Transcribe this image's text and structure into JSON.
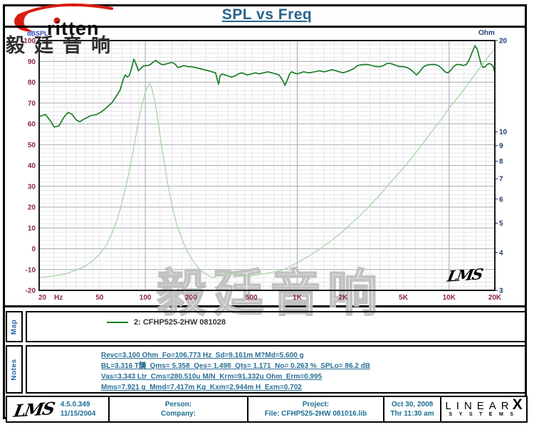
{
  "header": {
    "title": "SPL vs Freq",
    "brand_text": "ritten",
    "watermark_topleft": "毅廷音响",
    "watermark_center": "毅廷音响"
  },
  "colors": {
    "accent_red": "#d81e12",
    "title_blue": "#28648c",
    "tick_maroon": "#8a2550",
    "tick_navy": "#1c3f77",
    "dbspl_label_blue": "#2f45b5",
    "grid_minor": "#d7d7e0",
    "grid_major": "#a6a6b2",
    "plot_frame": "#1a1a1a",
    "spl_green": "#1b7e28",
    "impedance_green": "#a9d6a4",
    "teal_text": "#1b6f91",
    "panel_label_blue": "#2563a8",
    "notes_text": "#2a6f96"
  },
  "chart_data": {
    "type": "line",
    "title": "SPL vs Freq",
    "grid": true,
    "lms_mark": "LMS",
    "x_axis": {
      "label": "Hz",
      "scale": "log",
      "min": 20,
      "max": 20000,
      "tick_values": [
        20,
        50,
        100,
        200,
        500,
        1000,
        2000,
        5000,
        10000,
        20000
      ],
      "tick_labels": [
        "20",
        "50",
        "100",
        "200",
        "500",
        "1K",
        "2K",
        "5K",
        "10K",
        "20K"
      ],
      "unit_label": "Hz"
    },
    "y_left": {
      "label": "dBSPL",
      "scale": "linear",
      "min": -20,
      "max": 100,
      "major_step": 10,
      "minor_step": 2
    },
    "y_right": {
      "label": "Ohm",
      "scale": "log",
      "min": 3,
      "max": 20,
      "ticks": [
        20,
        10,
        9,
        8,
        7,
        6,
        5,
        4,
        3
      ]
    },
    "series": [
      {
        "name": "2: CFHP525-2HW   081028",
        "kind": "SPL",
        "axis": "left",
        "color": "#1b7e28",
        "width": 1.7,
        "points": [
          [
            20,
            63.5
          ],
          [
            22,
            64.5
          ],
          [
            24,
            61
          ],
          [
            25,
            58.5
          ],
          [
            27,
            59
          ],
          [
            29,
            63
          ],
          [
            31,
            65.5
          ],
          [
            33,
            64.5
          ],
          [
            35,
            62
          ],
          [
            37,
            61
          ],
          [
            40,
            62.5
          ],
          [
            44,
            64
          ],
          [
            48,
            64.5
          ],
          [
            52,
            66
          ],
          [
            56,
            68
          ],
          [
            60,
            70
          ],
          [
            64,
            73
          ],
          [
            68,
            76
          ],
          [
            70,
            79
          ],
          [
            72,
            82
          ],
          [
            74,
            83.5
          ],
          [
            76,
            82.5
          ],
          [
            78,
            83
          ],
          [
            80,
            85
          ],
          [
            82,
            88
          ],
          [
            84,
            91
          ],
          [
            86,
            89.5
          ],
          [
            88,
            87.5
          ],
          [
            90,
            85.5
          ],
          [
            93,
            86.5
          ],
          [
            96,
            87.5
          ],
          [
            100,
            88
          ],
          [
            104,
            88
          ],
          [
            108,
            88.5
          ],
          [
            112,
            89.5
          ],
          [
            117,
            90.5
          ],
          [
            122,
            89.5
          ],
          [
            128,
            88.5
          ],
          [
            134,
            88.5
          ],
          [
            140,
            89
          ],
          [
            150,
            89.5
          ],
          [
            158,
            88.5
          ],
          [
            164,
            87
          ],
          [
            172,
            87.5
          ],
          [
            180,
            88
          ],
          [
            190,
            87.5
          ],
          [
            200,
            87.5
          ],
          [
            215,
            87
          ],
          [
            230,
            86.5
          ],
          [
            245,
            86
          ],
          [
            260,
            85.5
          ],
          [
            275,
            85
          ],
          [
            290,
            84.5
          ],
          [
            298,
            81
          ],
          [
            304,
            79
          ],
          [
            310,
            83
          ],
          [
            320,
            84
          ],
          [
            335,
            83.5
          ],
          [
            350,
            83
          ],
          [
            370,
            82.5
          ],
          [
            390,
            83
          ],
          [
            410,
            84
          ],
          [
            430,
            84.5
          ],
          [
            450,
            84
          ],
          [
            470,
            83.5
          ],
          [
            500,
            84
          ],
          [
            530,
            84.5
          ],
          [
            560,
            84
          ],
          [
            600,
            84.5
          ],
          [
            640,
            85
          ],
          [
            680,
            84.5
          ],
          [
            720,
            84
          ],
          [
            760,
            83.5
          ],
          [
            800,
            81
          ],
          [
            830,
            78.5
          ],
          [
            860,
            81
          ],
          [
            890,
            84
          ],
          [
            920,
            85
          ],
          [
            950,
            84.5
          ],
          [
            1000,
            84
          ],
          [
            1050,
            84.5
          ],
          [
            1100,
            85
          ],
          [
            1200,
            84.5
          ],
          [
            1300,
            85
          ],
          [
            1400,
            85.5
          ],
          [
            1500,
            85
          ],
          [
            1600,
            85.5
          ],
          [
            1700,
            86
          ],
          [
            1800,
            85.5
          ],
          [
            1900,
            85
          ],
          [
            2000,
            84.5
          ],
          [
            2100,
            85
          ],
          [
            2200,
            85.5
          ],
          [
            2350,
            86.5
          ],
          [
            2500,
            88
          ],
          [
            2700,
            88.5
          ],
          [
            2900,
            88.5
          ],
          [
            3100,
            88
          ],
          [
            3300,
            87.5
          ],
          [
            3500,
            87.5
          ],
          [
            3700,
            88
          ],
          [
            3900,
            89
          ],
          [
            4100,
            89
          ],
          [
            4300,
            88.5
          ],
          [
            4500,
            88
          ],
          [
            4700,
            87.5
          ],
          [
            5000,
            87.5
          ],
          [
            5300,
            87
          ],
          [
            5600,
            86
          ],
          [
            5900,
            84.5
          ],
          [
            6100,
            83.5
          ],
          [
            6400,
            85
          ],
          [
            6700,
            87
          ],
          [
            7000,
            88
          ],
          [
            7500,
            88.5
          ],
          [
            8000,
            88.5
          ],
          [
            8500,
            88
          ],
          [
            9000,
            86.5
          ],
          [
            9400,
            85
          ],
          [
            9800,
            84.5
          ],
          [
            10200,
            85.5
          ],
          [
            10700,
            87.5
          ],
          [
            11200,
            88.5
          ],
          [
            11800,
            88.5
          ],
          [
            12400,
            88
          ],
          [
            13000,
            88.5
          ],
          [
            13600,
            91
          ],
          [
            14200,
            94.5
          ],
          [
            14800,
            97.5
          ],
          [
            15300,
            96
          ],
          [
            15800,
            92
          ],
          [
            16300,
            88.5
          ],
          [
            16800,
            87
          ],
          [
            17300,
            87.5
          ],
          [
            17800,
            88.5
          ],
          [
            18400,
            89
          ],
          [
            19000,
            88.5
          ],
          [
            19500,
            87.5
          ],
          [
            20000,
            84.5
          ]
        ]
      },
      {
        "name": "Impedance",
        "kind": "impedance",
        "axis": "right",
        "color": "#a9d6a4",
        "width": 1.3,
        "points": [
          [
            20,
            3.3
          ],
          [
            25,
            3.35
          ],
          [
            30,
            3.4
          ],
          [
            35,
            3.5
          ],
          [
            40,
            3.6
          ],
          [
            45,
            3.75
          ],
          [
            50,
            3.95
          ],
          [
            55,
            4.2
          ],
          [
            60,
            4.6
          ],
          [
            65,
            5.1
          ],
          [
            70,
            5.8
          ],
          [
            75,
            6.7
          ],
          [
            80,
            7.8
          ],
          [
            85,
            9.2
          ],
          [
            90,
            10.8
          ],
          [
            95,
            12.3
          ],
          [
            100,
            13.5
          ],
          [
            104,
            14.2
          ],
          [
            107,
            14.4
          ],
          [
            110,
            14.0
          ],
          [
            115,
            12.8
          ],
          [
            120,
            11.2
          ],
          [
            125,
            9.7
          ],
          [
            130,
            8.5
          ],
          [
            140,
            6.8
          ],
          [
            150,
            5.7
          ],
          [
            160,
            5.0
          ],
          [
            175,
            4.4
          ],
          [
            190,
            4.0
          ],
          [
            210,
            3.7
          ],
          [
            230,
            3.5
          ],
          [
            250,
            3.4
          ],
          [
            280,
            3.3
          ],
          [
            320,
            3.45
          ],
          [
            360,
            3.4
          ],
          [
            400,
            3.38
          ],
          [
            450,
            3.35
          ],
          [
            500,
            3.35
          ],
          [
            600,
            3.4
          ],
          [
            700,
            3.45
          ],
          [
            800,
            3.5
          ],
          [
            900,
            3.6
          ],
          [
            1000,
            3.7
          ],
          [
            1200,
            3.9
          ],
          [
            1400,
            4.1
          ],
          [
            1700,
            4.4
          ],
          [
            2000,
            4.7
          ],
          [
            2500,
            5.2
          ],
          [
            3000,
            5.7
          ],
          [
            3500,
            6.2
          ],
          [
            4000,
            6.7
          ],
          [
            5000,
            7.6
          ],
          [
            6000,
            8.5
          ],
          [
            7000,
            9.4
          ],
          [
            8000,
            10.3
          ],
          [
            9000,
            11.1
          ],
          [
            10000,
            12.0
          ],
          [
            12000,
            13.4
          ],
          [
            14000,
            14.9
          ],
          [
            16000,
            16.3
          ],
          [
            18000,
            17.6
          ],
          [
            20000,
            18.8
          ]
        ]
      }
    ]
  },
  "map_panel": {
    "label": "Map",
    "legend_text": "2: CFHP525-2HW   081028"
  },
  "notes_panel": {
    "label": "Notes",
    "lines": [
      "Revc=3.100 Ohm  Fo=106.773 Hz  Sd=9.161m M?Md=5.600 g",
      "BL=3.316 T醻  Qms= 5.358  Qes= 1.498  Qts= 1.171  No= 0.263 %  SPLo= 86.2 dB",
      "Vas=3.343 Ltr  Cms=280.510u M/N  Krm=91.332u Ohm  Erm=0.995",
      "Mms=7.921 g  Mmd=7.417m Kg  Kxm=2.944m H  Exm=0.702"
    ]
  },
  "footer": {
    "lms_script": "LMS",
    "version": "4.5.0.349",
    "version_date": "11/15/2004",
    "person_label": "Person:",
    "company_label": "Company:",
    "project_label": "Project:",
    "file_line": "File: CFHP525-2HW  081016.lib",
    "date": "Oct 30, 2008",
    "time": "Thr 11:30 am",
    "linearx_word": "LINEAR",
    "linearx_x": "X",
    "linearx_sub": "SYSTEMS"
  }
}
